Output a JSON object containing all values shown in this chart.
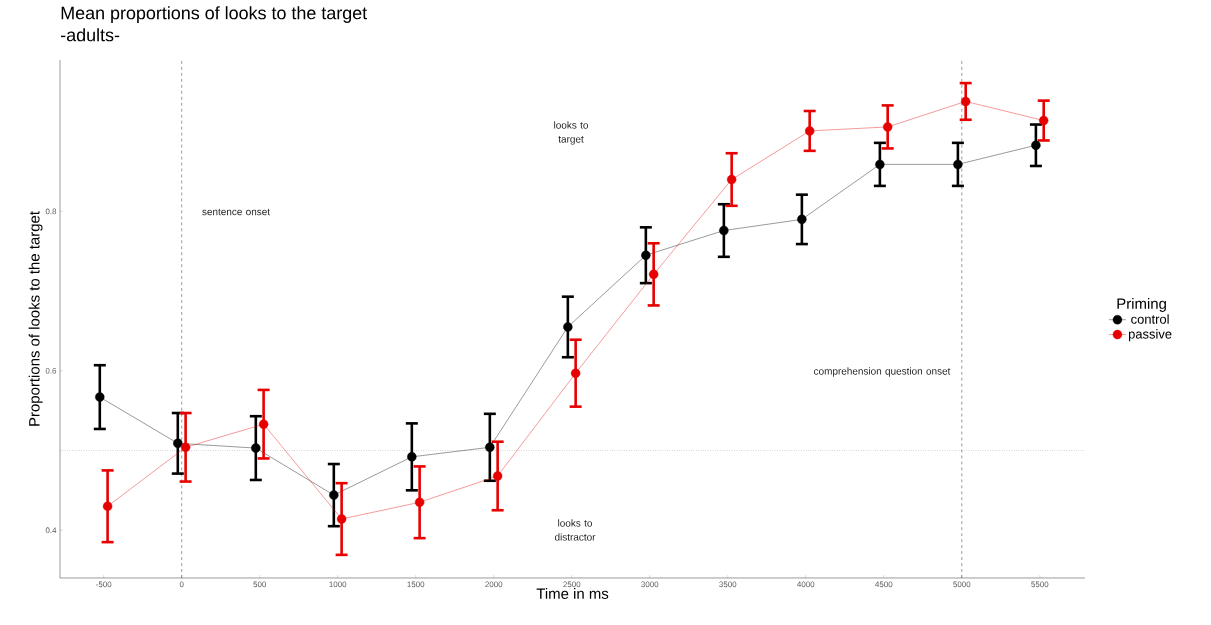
{
  "chart_data": {
    "type": "line",
    "title": "Mean proportions of looks to the target",
    "subtitle": "-adults-",
    "xlabel": "Time in ms",
    "ylabel": "Proportions of looks to the target",
    "legend_title": "Priming",
    "legend": "right",
    "marker": "circle",
    "line_style": "solid",
    "xlim": [
      -780,
      5790
    ],
    "ylim": [
      0.34,
      0.99
    ],
    "xticks": [
      -500,
      0,
      500,
      1000,
      1500,
      2000,
      2500,
      3000,
      3500,
      4000,
      4500,
      5000,
      5500
    ],
    "yticks": [
      0.4,
      0.6,
      0.8
    ],
    "series": [
      {
        "name": "control",
        "color": "#000000",
        "x": [
          -525,
          -25,
          475,
          975,
          1475,
          1975,
          2475,
          2975,
          3475,
          3975,
          4475,
          4975,
          5475
        ],
        "values": [
          0.567,
          0.509,
          0.503,
          0.444,
          0.492,
          0.504,
          0.655,
          0.745,
          0.776,
          0.79,
          0.859,
          0.859,
          0.883
        ],
        "errors": [
          0.04,
          0.038,
          0.04,
          0.039,
          0.042,
          0.042,
          0.038,
          0.035,
          0.033,
          0.031,
          0.027,
          0.027,
          0.026
        ]
      },
      {
        "name": "passive",
        "color": "#e60000",
        "x": [
          -475,
          25,
          525,
          1025,
          1525,
          2025,
          2525,
          3025,
          3525,
          4025,
          4525,
          5025,
          5525
        ],
        "values": [
          0.43,
          0.504,
          0.533,
          0.414,
          0.435,
          0.468,
          0.597,
          0.721,
          0.84,
          0.901,
          0.906,
          0.938,
          0.914
        ],
        "errors": [
          0.045,
          0.043,
          0.043,
          0.045,
          0.045,
          0.043,
          0.042,
          0.039,
          0.033,
          0.025,
          0.027,
          0.023,
          0.025
        ]
      }
    ],
    "ref_lines": [
      {
        "axis": "x",
        "value": 0,
        "line_style": "dashed"
      },
      {
        "axis": "x",
        "value": 5000,
        "line_style": "dashed"
      },
      {
        "axis": "y",
        "value": 0.5,
        "line_style": "dotted"
      }
    ],
    "annotations": [
      "sentence onset",
      "looks to target",
      "comprehension question onset",
      "looks to distractor"
    ]
  }
}
